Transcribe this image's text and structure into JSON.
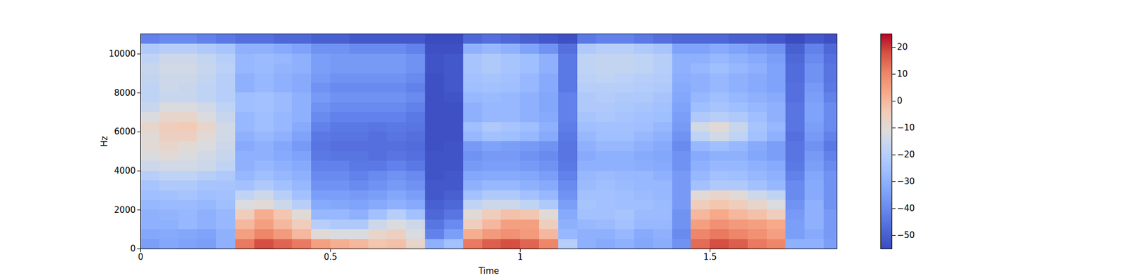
{
  "chart_data": {
    "type": "heatmap",
    "x_label": "Time",
    "y_label": "Hz",
    "xlim": [
      0,
      1.834
    ],
    "ylim": [
      0,
      11025
    ],
    "xticks": [
      0,
      0.5,
      1,
      1.5
    ],
    "yticks": [
      0,
      2000,
      4000,
      6000,
      8000,
      10000
    ],
    "x": [
      0,
      0.05,
      0.1,
      0.15,
      0.2,
      0.25,
      0.3,
      0.35,
      0.4,
      0.45,
      0.5,
      0.55,
      0.6,
      0.65,
      0.7,
      0.75,
      0.8,
      0.85,
      0.9,
      0.95,
      1,
      1.05,
      1.1,
      1.15,
      1.2,
      1.25,
      1.3,
      1.35,
      1.4,
      1.45,
      1.5,
      1.55,
      1.6,
      1.65,
      1.7,
      1.75,
      1.8
    ],
    "y": [
      0,
      500,
      1000,
      1500,
      2000,
      2500,
      3000,
      3500,
      4000,
      4500,
      5000,
      5500,
      6000,
      6500,
      7000,
      7500,
      8000,
      8500,
      9000,
      9500,
      10000,
      10500
    ],
    "values": [
      [
        -35,
        -33,
        -34,
        -35,
        -30,
        12,
        18,
        15,
        12,
        5,
        2,
        0,
        -3,
        -2,
        -8,
        -30,
        -25,
        12,
        16,
        18,
        15,
        10,
        -20,
        -30,
        -32,
        -30,
        -33,
        -31,
        -38,
        14,
        18,
        16,
        12,
        10,
        -30,
        -30,
        -35
      ],
      [
        -33,
        -32,
        -33,
        -34,
        -30,
        5,
        10,
        6,
        0,
        -10,
        -12,
        -12,
        -8,
        -6,
        -12,
        -42,
        -35,
        2,
        6,
        8,
        6,
        0,
        -28,
        -30,
        -30,
        -28,
        -32,
        -30,
        -40,
        10,
        12,
        10,
        8,
        5,
        -35,
        -32,
        -36
      ],
      [
        -30,
        -30,
        -28,
        -30,
        -28,
        0,
        5,
        0,
        -5,
        -20,
        -22,
        -22,
        -15,
        -12,
        -15,
        -45,
        -40,
        -5,
        0,
        5,
        5,
        -5,
        -30,
        -28,
        -27,
        -25,
        -28,
        -28,
        -38,
        5,
        8,
        6,
        5,
        3,
        -35,
        -30,
        -36
      ],
      [
        -30,
        -29,
        -28,
        -30,
        -28,
        -5,
        2,
        -3,
        -10,
        -28,
        -28,
        -30,
        -25,
        -20,
        -25,
        -48,
        -45,
        -10,
        -5,
        -2,
        -3,
        -10,
        -32,
        -25,
        -25,
        -24,
        -27,
        -27,
        -38,
        0,
        3,
        0,
        -2,
        -5,
        -36,
        -30,
        -36
      ],
      [
        -28,
        -27,
        -27,
        -28,
        -26,
        -12,
        -10,
        -15,
        -20,
        -32,
        -33,
        -34,
        -32,
        -30,
        -32,
        -50,
        -48,
        -18,
        -15,
        -15,
        -18,
        -22,
        -35,
        -24,
        -25,
        -26,
        -26,
        -27,
        -36,
        -5,
        -3,
        -5,
        -8,
        -12,
        -38,
        -30,
        -38
      ],
      [
        -26,
        -25,
        -24,
        -26,
        -25,
        -18,
        -15,
        -20,
        -25,
        -35,
        -35,
        -36,
        -35,
        -33,
        -35,
        -52,
        -50,
        -25,
        -22,
        -22,
        -25,
        -28,
        -38,
        -25,
        -25,
        -26,
        -27,
        -28,
        -36,
        -10,
        -8,
        -10,
        -15,
        -18,
        -40,
        -32,
        -38
      ],
      [
        -24,
        -22,
        -22,
        -24,
        -24,
        -25,
        -22,
        -25,
        -28,
        -38,
        -38,
        -40,
        -38,
        -36,
        -38,
        -52,
        -52,
        -30,
        -28,
        -28,
        -30,
        -32,
        -40,
        -27,
        -26,
        -27,
        -28,
        -28,
        -36,
        -25,
        -22,
        -22,
        -25,
        -28,
        -40,
        -32,
        -38
      ],
      [
        -20,
        -18,
        -18,
        -20,
        -22,
        -28,
        -26,
        -28,
        -30,
        -40,
        -40,
        -42,
        -40,
        -38,
        -40,
        -53,
        -52,
        -33,
        -32,
        -32,
        -33,
        -35,
        -42,
        -28,
        -27,
        -28,
        -28,
        -30,
        -36,
        -28,
        -25,
        -26,
        -28,
        -30,
        -42,
        -33,
        -38
      ],
      [
        -15,
        -14,
        -14,
        -15,
        -18,
        -30,
        -28,
        -30,
        -32,
        -42,
        -42,
        -44,
        -44,
        -42,
        -44,
        -53,
        -53,
        -36,
        -35,
        -35,
        -36,
        -38,
        -44,
        -30,
        -30,
        -30,
        -31,
        -32,
        -38,
        -30,
        -28,
        -28,
        -30,
        -32,
        -44,
        -35,
        -40
      ],
      [
        -12,
        -10,
        -12,
        -14,
        -16,
        -30,
        -30,
        -32,
        -34,
        -44,
        -45,
        -45,
        -46,
        -45,
        -46,
        -53,
        -53,
        -38,
        -36,
        -36,
        -38,
        -40,
        -45,
        -32,
        -30,
        -30,
        -32,
        -33,
        -38,
        -32,
        -30,
        -30,
        -33,
        -35,
        -45,
        -36,
        -42
      ],
      [
        -10,
        -8,
        -10,
        -12,
        -15,
        -32,
        -30,
        -33,
        -36,
        -45,
        -46,
        -46,
        -46,
        -46,
        -47,
        -54,
        -53,
        -36,
        -34,
        -35,
        -36,
        -38,
        -45,
        -30,
        -28,
        -28,
        -30,
        -32,
        -40,
        -28,
        -26,
        -28,
        -32,
        -35,
        -45,
        -38,
        -44
      ],
      [
        -10,
        -6,
        -6,
        -10,
        -14,
        -30,
        -28,
        -30,
        -34,
        -44,
        -45,
        -45,
        -46,
        -45,
        -46,
        -54,
        -54,
        -28,
        -25,
        -26,
        -28,
        -32,
        -44,
        -28,
        -26,
        -26,
        -28,
        -30,
        -38,
        -18,
        -14,
        -18,
        -25,
        -30,
        -46,
        -36,
        -42
      ],
      [
        -8,
        -5,
        -4,
        -8,
        -14,
        -28,
        -26,
        -28,
        -32,
        -42,
        -44,
        -44,
        -45,
        -44,
        -45,
        -54,
        -54,
        -26,
        -22,
        -24,
        -26,
        -30,
        -43,
        -26,
        -25,
        -25,
        -26,
        -28,
        -36,
        -14,
        -10,
        -16,
        -24,
        -28,
        -45,
        -35,
        -40
      ],
      [
        -12,
        -8,
        -8,
        -12,
        -16,
        -28,
        -26,
        -28,
        -30,
        -40,
        -42,
        -42,
        -42,
        -42,
        -44,
        -54,
        -54,
        -30,
        -28,
        -28,
        -30,
        -32,
        -42,
        -24,
        -23,
        -24,
        -25,
        -26,
        -35,
        -22,
        -20,
        -22,
        -26,
        -30,
        -45,
        -34,
        -40
      ],
      [
        -16,
        -12,
        -12,
        -14,
        -18,
        -26,
        -25,
        -27,
        -30,
        -38,
        -40,
        -40,
        -40,
        -40,
        -42,
        -54,
        -54,
        -30,
        -28,
        -28,
        -30,
        -33,
        -42,
        -22,
        -22,
        -23,
        -24,
        -25,
        -34,
        -26,
        -24,
        -26,
        -28,
        -30,
        -45,
        -34,
        -40
      ],
      [
        -18,
        -16,
        -16,
        -18,
        -20,
        -26,
        -25,
        -27,
        -30,
        -36,
        -38,
        -38,
        -38,
        -38,
        -40,
        -54,
        -53,
        -28,
        -27,
        -28,
        -30,
        -33,
        -42,
        -22,
        -21,
        -22,
        -22,
        -24,
        -33,
        -28,
        -26,
        -28,
        -30,
        -32,
        -46,
        -35,
        -42
      ],
      [
        -18,
        -15,
        -16,
        -18,
        -20,
        -30,
        -28,
        -30,
        -32,
        -38,
        -40,
        -40,
        -40,
        -40,
        -42,
        -54,
        -52,
        -26,
        -25,
        -26,
        -28,
        -32,
        -44,
        -20,
        -20,
        -20,
        -21,
        -22,
        -32,
        -30,
        -28,
        -30,
        -32,
        -34,
        -46,
        -36,
        -44
      ],
      [
        -17,
        -15,
        -15,
        -17,
        -20,
        -30,
        -28,
        -30,
        -32,
        -36,
        -38,
        -38,
        -38,
        -38,
        -40,
        -54,
        -52,
        -25,
        -24,
        -25,
        -28,
        -32,
        -44,
        -19,
        -18,
        -19,
        -20,
        -21,
        -31,
        -30,
        -28,
        -30,
        -32,
        -34,
        -47,
        -38,
        -45
      ],
      [
        -16,
        -14,
        -14,
        -16,
        -19,
        -28,
        -27,
        -29,
        -30,
        -35,
        -36,
        -36,
        -36,
        -36,
        -38,
        -53,
        -52,
        -24,
        -22,
        -24,
        -26,
        -30,
        -44,
        -18,
        -17,
        -17,
        -18,
        -20,
        -30,
        -28,
        -26,
        -28,
        -30,
        -34,
        -47,
        -38,
        -45
      ],
      [
        -18,
        -15,
        -15,
        -17,
        -20,
        -28,
        -27,
        -28,
        -30,
        -35,
        -36,
        -36,
        -36,
        -36,
        -38,
        -53,
        -52,
        -24,
        -22,
        -24,
        -26,
        -30,
        -44,
        -18,
        -17,
        -17,
        -18,
        -20,
        -30,
        -30,
        -28,
        -30,
        -32,
        -35,
        -48,
        -40,
        -46
      ],
      [
        -22,
        -20,
        -20,
        -22,
        -24,
        -30,
        -30,
        -32,
        -34,
        -38,
        -38,
        -40,
        -40,
        -40,
        -42,
        -54,
        -54,
        -30,
        -28,
        -30,
        -34,
        -38,
        -46,
        -22,
        -20,
        -20,
        -22,
        -24,
        -34,
        -34,
        -32,
        -34,
        -36,
        -38,
        -50,
        -42,
        -48
      ],
      [
        -42,
        -40,
        -40,
        -42,
        -44,
        -46,
        -46,
        -48,
        -48,
        -50,
        -50,
        -52,
        -52,
        -52,
        -52,
        -55,
        -55,
        -48,
        -46,
        -48,
        -50,
        -52,
        -54,
        -44,
        -42,
        -42,
        -44,
        -46,
        -48,
        -48,
        -48,
        -50,
        -50,
        -52,
        -55,
        -52,
        -54
      ]
    ],
    "colorbar": {
      "lim": [
        -55,
        25
      ],
      "ticks": [
        -50,
        -40,
        -30,
        -20,
        -10,
        0,
        10,
        20
      ]
    }
  }
}
